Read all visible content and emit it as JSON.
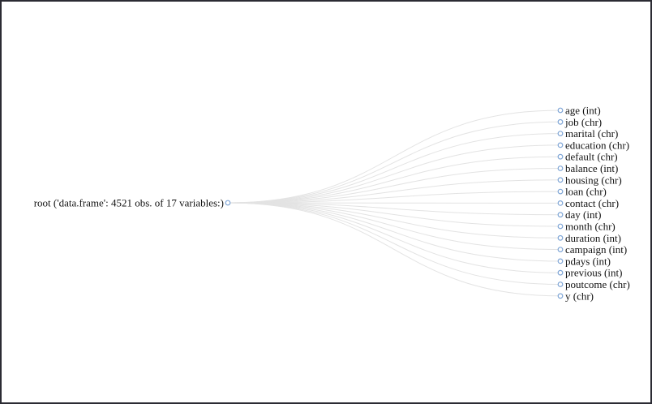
{
  "root": {
    "label": "root ('data.frame': 4521 obs. of 17 variables:)"
  },
  "children": [
    "age (int)",
    "job (chr)",
    "marital (chr)",
    "education (chr)",
    "default (chr)",
    "balance (int)",
    "housing (chr)",
    "loan (chr)",
    "contact (chr)",
    "day (int)",
    "month (chr)",
    "duration (int)",
    "campaign (int)",
    "pdays (int)",
    "previous (int)",
    "poutcome (chr)",
    "y (chr)"
  ],
  "colors": {
    "link": "#e3e3e3",
    "node_stroke": "#7ea5d6",
    "text": "#111111"
  }
}
